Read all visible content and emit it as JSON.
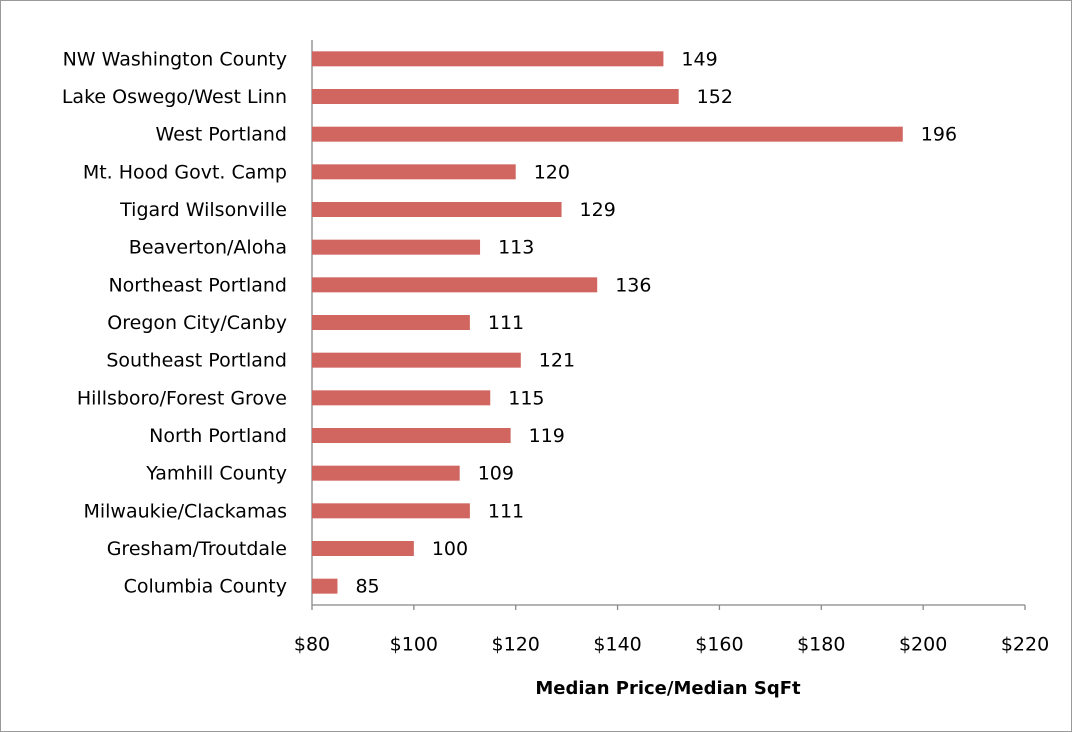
{
  "chart_data": {
    "type": "bar",
    "orientation": "horizontal",
    "x_label": "Median Price/Median SqFt",
    "categories": [
      "NW Washington County",
      "Lake Oswego/West Linn",
      "West Portland",
      "Mt. Hood Govt. Camp",
      "Tigard Wilsonville",
      "Beaverton/Aloha",
      "Northeast Portland",
      "Oregon City/Canby",
      "Southeast Portland",
      "Hillsboro/Forest Grove",
      "North Portland",
      "Yamhill County",
      "Milwaukie/Clackamas",
      "Gresham/Troutdale",
      "Columbia County"
    ],
    "values": [
      149,
      152,
      196,
      120,
      129,
      113,
      136,
      111,
      121,
      115,
      119,
      109,
      111,
      100,
      85
    ],
    "color": "#d0665f",
    "xlim": [
      80,
      220
    ],
    "xticks": [
      {
        "value": 80,
        "label": "$80"
      },
      {
        "value": 100,
        "label": "$100"
      },
      {
        "value": 120,
        "label": "$120"
      },
      {
        "value": 140,
        "label": "$140"
      },
      {
        "value": 160,
        "label": "$160"
      },
      {
        "value": 180,
        "label": "$180"
      },
      {
        "value": 200,
        "label": "$200"
      },
      {
        "value": 220,
        "label": "$220"
      }
    ],
    "grid": false
  }
}
